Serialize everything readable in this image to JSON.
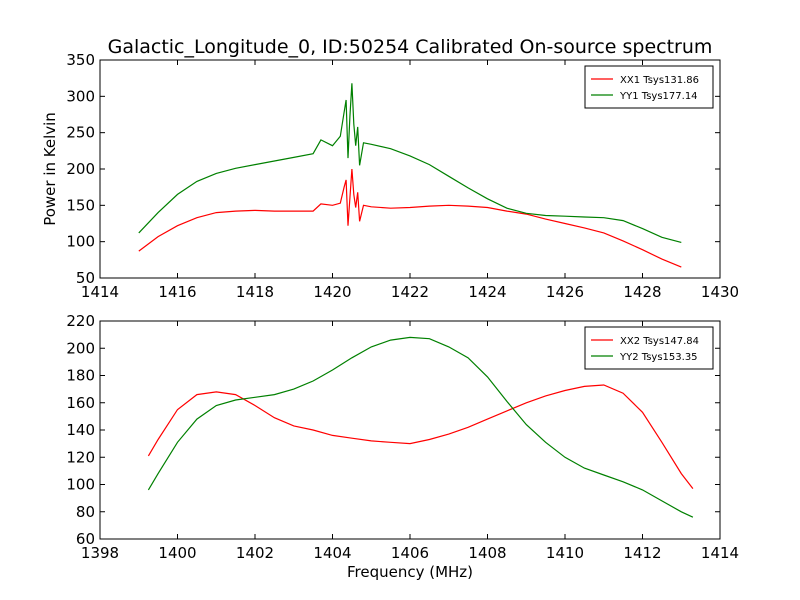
{
  "title": "Galactic_Longitude_0, ID:50254 Calibrated On-source spectrum",
  "chart_data": [
    {
      "type": "line",
      "title": "Galactic_Longitude_0, ID:50254 Calibrated On-source spectrum",
      "xlabel": "",
      "ylabel": "Power in Kelvin",
      "xlim": [
        1414,
        1430
      ],
      "ylim": [
        50,
        350
      ],
      "xticks": [
        1414,
        1416,
        1418,
        1420,
        1422,
        1424,
        1426,
        1428,
        1430
      ],
      "yticks": [
        50,
        100,
        150,
        200,
        250,
        300,
        350
      ],
      "grid": false,
      "legend_position": "top-right",
      "series": [
        {
          "name": "XX1 Tsys131.86",
          "color": "#ff0000",
          "x": [
            1415.0,
            1415.5,
            1416.0,
            1416.5,
            1417.0,
            1417.5,
            1418.0,
            1418.5,
            1419.0,
            1419.5,
            1419.7,
            1420.0,
            1420.2,
            1420.3,
            1420.35,
            1420.4,
            1420.45,
            1420.5,
            1420.55,
            1420.6,
            1420.65,
            1420.7,
            1420.8,
            1421.0,
            1421.5,
            1422.0,
            1422.5,
            1423.0,
            1423.5,
            1424.0,
            1424.5,
            1425.0,
            1425.5,
            1426.0,
            1426.5,
            1427.0,
            1427.5,
            1428.0,
            1428.5,
            1429.0
          ],
          "y": [
            87,
            107,
            122,
            133,
            140,
            142,
            143,
            142,
            142,
            142,
            152,
            150,
            153,
            175,
            185,
            122,
            160,
            200,
            165,
            147,
            168,
            128,
            150,
            148,
            146,
            147,
            149,
            150,
            149,
            147,
            142,
            138,
            131,
            125,
            119,
            112,
            101,
            89,
            76,
            65
          ]
        },
        {
          "name": "YY1 Tsys177.14",
          "color": "#008000",
          "x": [
            1415.0,
            1415.5,
            1416.0,
            1416.5,
            1417.0,
            1417.5,
            1418.0,
            1418.5,
            1419.0,
            1419.5,
            1419.7,
            1420.0,
            1420.2,
            1420.3,
            1420.35,
            1420.4,
            1420.45,
            1420.5,
            1420.55,
            1420.6,
            1420.65,
            1420.7,
            1420.8,
            1421.0,
            1421.5,
            1422.0,
            1422.5,
            1423.0,
            1423.5,
            1424.0,
            1424.5,
            1425.0,
            1425.5,
            1426.0,
            1426.5,
            1427.0,
            1427.5,
            1428.0,
            1428.5,
            1429.0
          ],
          "y": [
            112,
            140,
            165,
            183,
            194,
            201,
            206,
            211,
            216,
            221,
            240,
            232,
            245,
            278,
            295,
            215,
            272,
            318,
            262,
            232,
            258,
            205,
            236,
            234,
            228,
            218,
            206,
            190,
            174,
            159,
            146,
            139,
            136,
            135,
            134,
            133,
            129,
            118,
            106,
            99
          ]
        }
      ]
    },
    {
      "type": "line",
      "title": "",
      "xlabel": "Frequency (MHz)",
      "ylabel": "",
      "xlim": [
        1398,
        1414
      ],
      "ylim": [
        60,
        220
      ],
      "xticks": [
        1398,
        1400,
        1402,
        1404,
        1406,
        1408,
        1410,
        1412,
        1414
      ],
      "yticks": [
        60,
        80,
        100,
        120,
        140,
        160,
        180,
        200,
        220
      ],
      "grid": false,
      "legend_position": "top-right",
      "series": [
        {
          "name": "XX2 Tsys147.84",
          "color": "#ff0000",
          "x": [
            1399.25,
            1399.5,
            1400.0,
            1400.5,
            1401.0,
            1401.5,
            1402.0,
            1402.5,
            1403.0,
            1403.5,
            1404.0,
            1404.5,
            1405.0,
            1405.5,
            1406.0,
            1406.5,
            1407.0,
            1407.5,
            1408.0,
            1408.5,
            1409.0,
            1409.5,
            1410.0,
            1410.5,
            1411.0,
            1411.5,
            1412.0,
            1412.5,
            1413.0,
            1413.3
          ],
          "y": [
            121,
            133,
            155,
            166,
            168,
            166,
            158,
            149,
            143,
            140,
            136,
            134,
            132,
            131,
            130,
            133,
            137,
            142,
            148,
            154,
            160,
            165,
            169,
            172,
            173,
            167,
            153,
            131,
            108,
            97
          ]
        },
        {
          "name": "YY2 Tsys153.35",
          "color": "#008000",
          "x": [
            1399.25,
            1399.5,
            1400.0,
            1400.5,
            1401.0,
            1401.5,
            1402.0,
            1402.5,
            1403.0,
            1403.5,
            1404.0,
            1404.5,
            1405.0,
            1405.5,
            1406.0,
            1406.5,
            1407.0,
            1407.5,
            1408.0,
            1408.5,
            1409.0,
            1409.5,
            1410.0,
            1410.5,
            1411.0,
            1411.5,
            1412.0,
            1412.5,
            1413.0,
            1413.3
          ],
          "y": [
            96,
            108,
            131,
            148,
            158,
            162,
            164,
            166,
            170,
            176,
            184,
            193,
            201,
            206,
            208,
            207,
            201,
            193,
            179,
            161,
            144,
            131,
            120,
            112,
            107,
            102,
            96,
            88,
            80,
            76
          ]
        }
      ]
    }
  ]
}
